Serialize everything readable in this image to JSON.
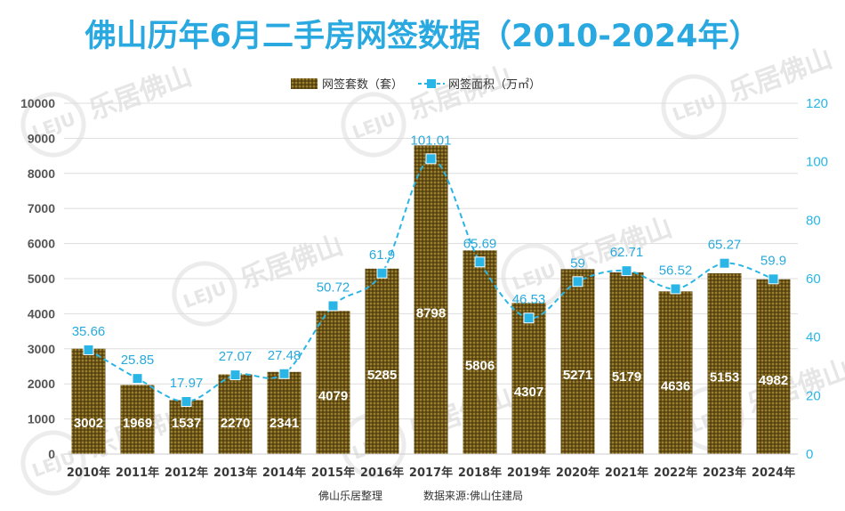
{
  "chart_data": {
    "type": "bar",
    "title": "佛山历年6月二手房网签数据（2010-2024年）",
    "categories": [
      "2010年",
      "2011年",
      "2012年",
      "2013年",
      "2014年",
      "2015年",
      "2016年",
      "2017年",
      "2018年",
      "2019年",
      "2020年",
      "2021年",
      "2022年",
      "2023年",
      "2024年"
    ],
    "series": [
      {
        "name": "网签套数（套）",
        "type": "bar",
        "axis": "left",
        "values": [
          3002,
          1969,
          1537,
          2270,
          2341,
          4079,
          5285,
          8798,
          5806,
          4307,
          5271,
          5179,
          4636,
          5153,
          4982
        ]
      },
      {
        "name": "网签面积（万㎡）",
        "type": "line",
        "axis": "right",
        "values": [
          35.66,
          25.85,
          17.97,
          27.07,
          27.48,
          50.72,
          61.9,
          101.01,
          65.69,
          46.53,
          59,
          62.71,
          56.52,
          65.27,
          59.9
        ]
      }
    ],
    "left_axis": {
      "min": 0,
      "max": 10000,
      "ticks": [
        "0",
        "1000",
        "2000",
        "3000",
        "4000",
        "5000",
        "6000",
        "7000",
        "8000",
        "9000",
        "10000"
      ]
    },
    "right_axis": {
      "min": 0,
      "max": 120,
      "ticks": [
        "0",
        "20",
        "40",
        "60",
        "80",
        "100",
        "120"
      ]
    },
    "grid": true,
    "legend_position": "top-center",
    "colors": {
      "bar": "#6b5418",
      "bar_pattern": "#a08538",
      "line": "#29b6e6",
      "title": "#29a9e0",
      "grid": "#dddddd"
    }
  },
  "footer": {
    "left": "佛山乐居整理",
    "right": "数据来源:佛山住建局"
  },
  "watermark": {
    "logo": "LEJU",
    "text": "乐居佛山"
  }
}
